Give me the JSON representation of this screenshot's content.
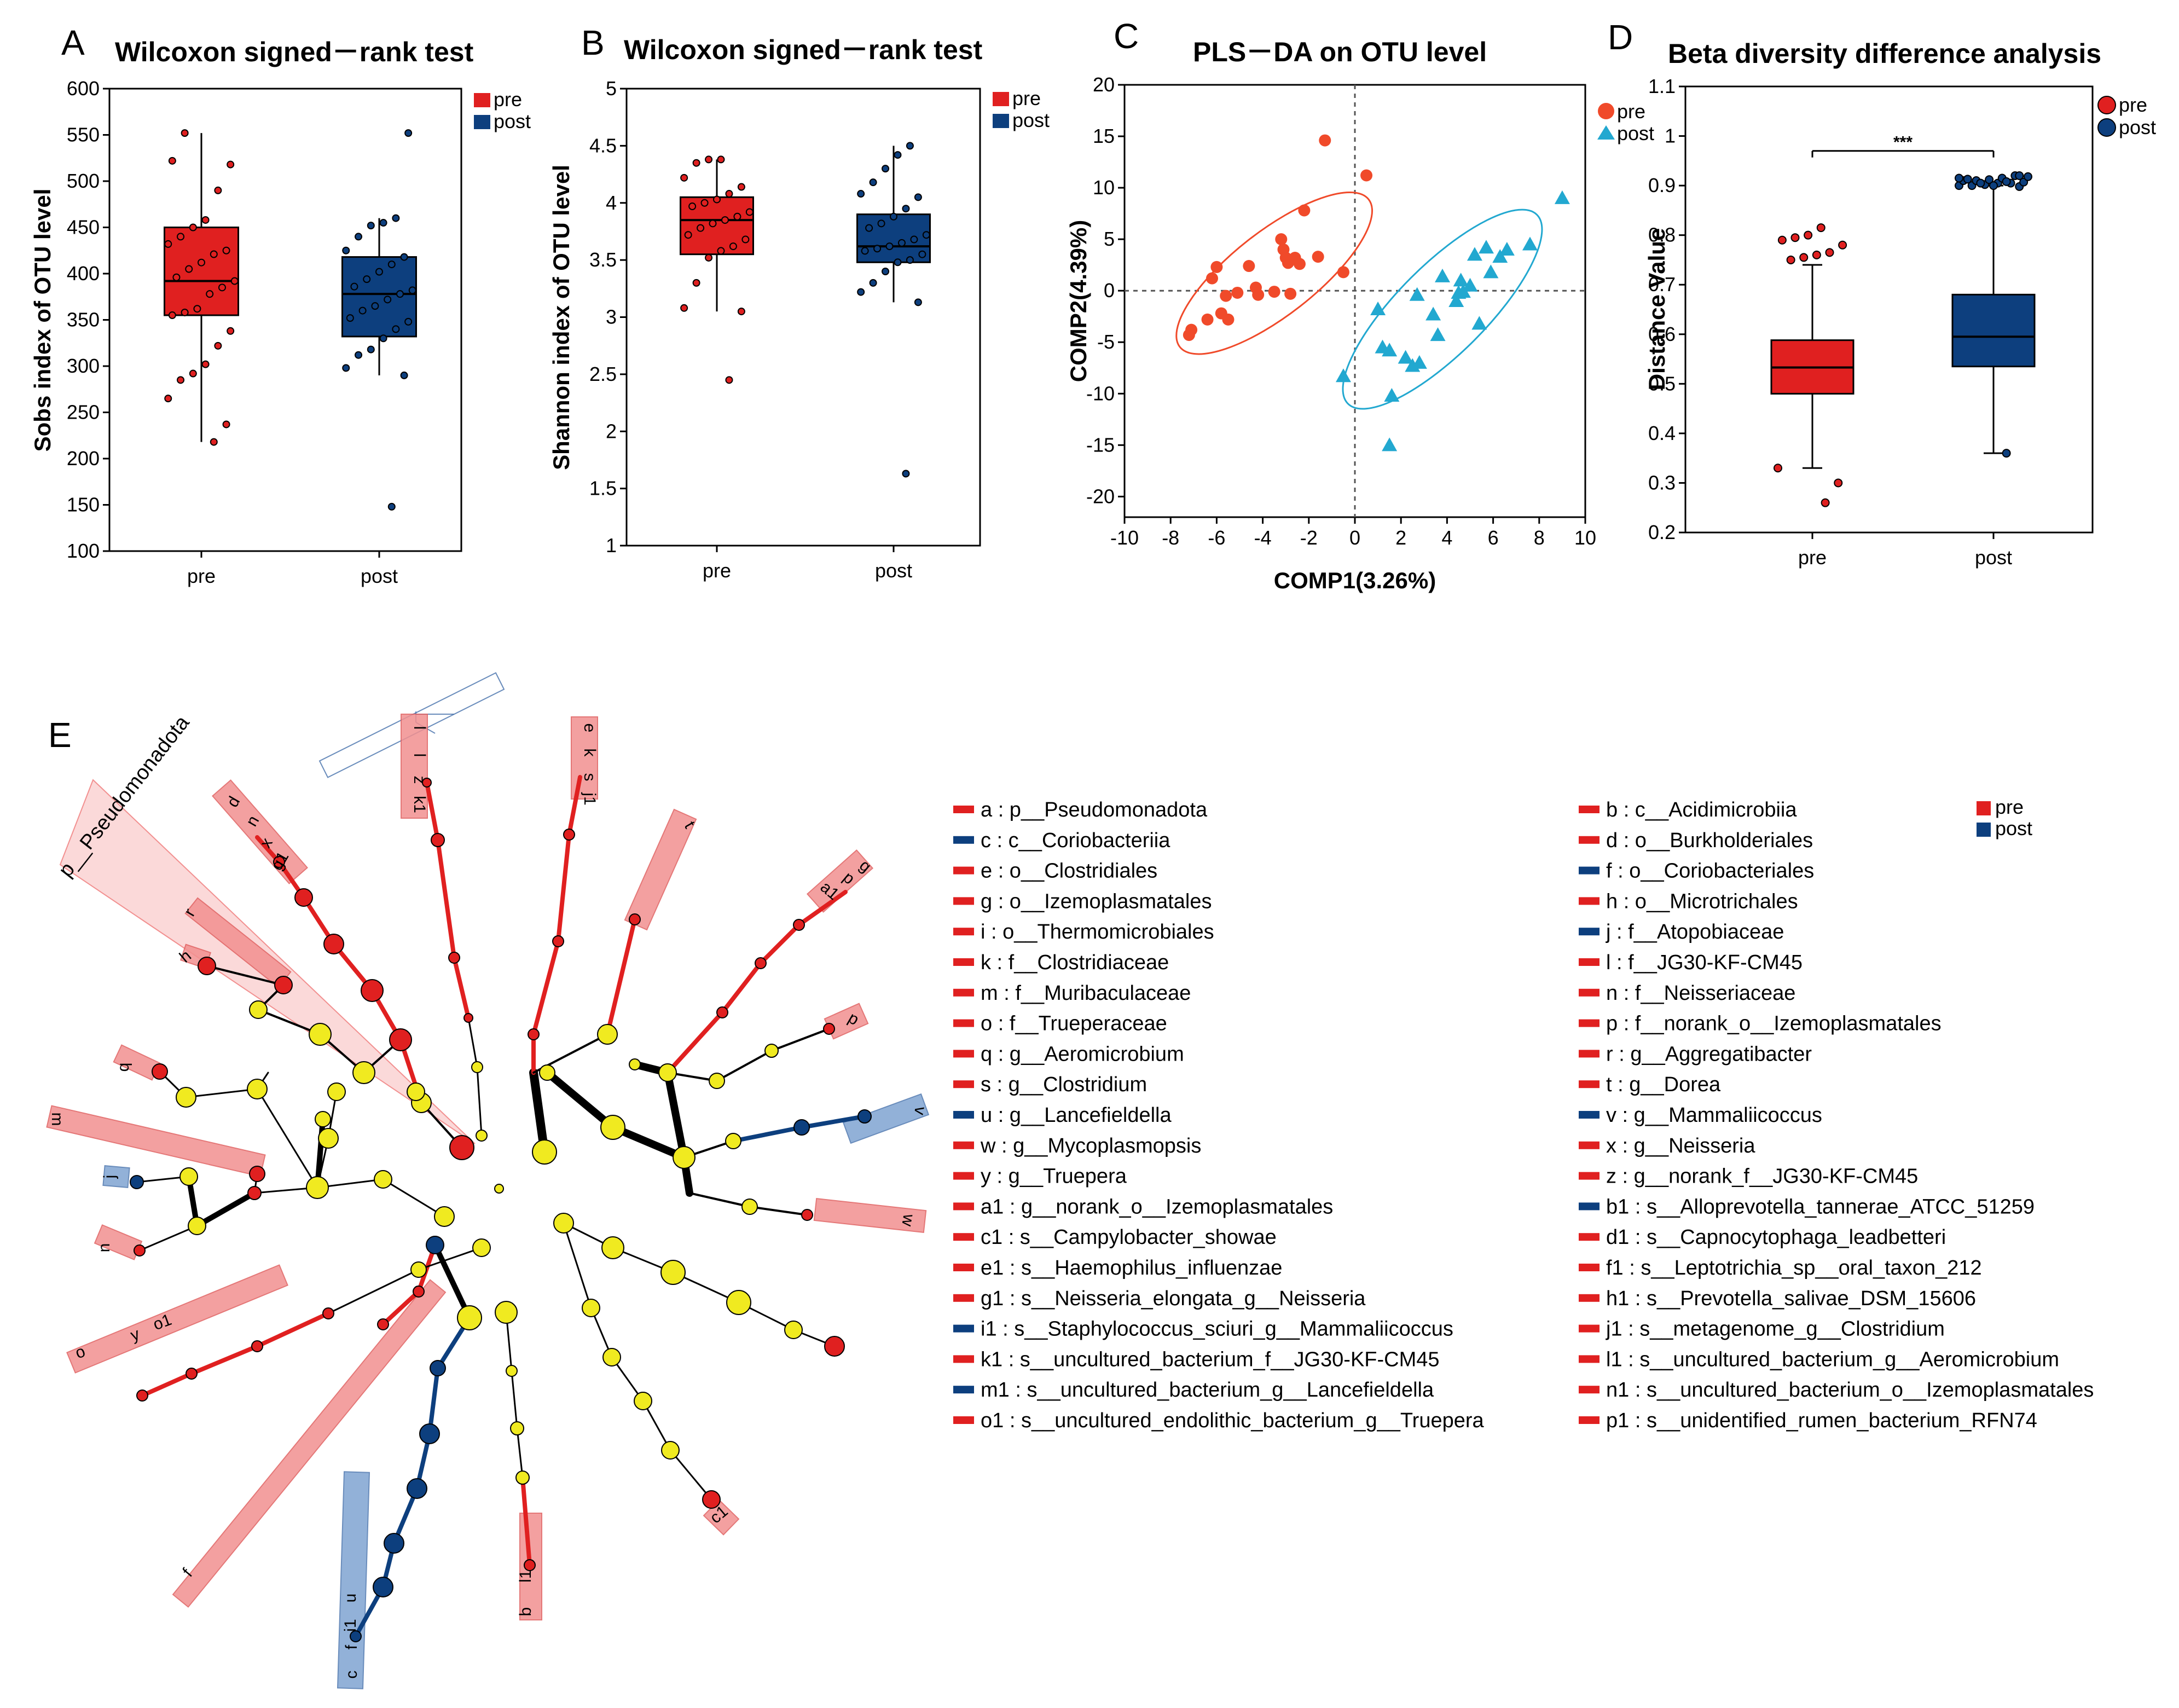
{
  "colors": {
    "pre": "#e02020",
    "post": "#0d3f7e",
    "pre_pls": "#f04a2a",
    "post_pls": "#22a8d0",
    "node": "#f0ea20",
    "pre_light": "#f29090",
    "post_light": "#7fa4d2",
    "pre_bg": "#fbd9d9"
  },
  "panels": {
    "A": {
      "label": "A",
      "title": "Wilcoxon signed－rank test"
    },
    "B": {
      "label": "B",
      "title": "Wilcoxon signed－rank test"
    },
    "C": {
      "label": "C",
      "title": "PLS－DA on OTU level"
    },
    "D": {
      "label": "D",
      "title": "Beta diversity difference analysis"
    },
    "E": {
      "label": "E",
      "clade_label": "p__Pseudomonadota"
    }
  },
  "chart_data": [
    {
      "id": "A",
      "type": "box",
      "title": "Wilcoxon signed－rank test",
      "ylabel": "Sobs index of OTU level",
      "xlabel": "",
      "ylim": [
        100,
        600
      ],
      "yticks": [
        100,
        150,
        200,
        250,
        300,
        350,
        400,
        450,
        500,
        550,
        600
      ],
      "categories": [
        "pre",
        "post"
      ],
      "legend": [
        "pre",
        "post"
      ],
      "boxes": [
        {
          "name": "pre",
          "q1": 355,
          "median": 392,
          "q3": 450,
          "whisker_low": 218,
          "whisker_high": 552,
          "points": [
            218,
            237,
            265,
            285,
            292,
            302,
            322,
            338,
            355,
            358,
            362,
            378,
            385,
            392,
            396,
            405,
            412,
            421,
            425,
            432,
            440,
            450,
            458,
            490,
            518,
            522,
            552
          ]
        },
        {
          "name": "post",
          "q1": 332,
          "median": 378,
          "q3": 418,
          "whisker_low": 290,
          "whisker_high": 460,
          "points": [
            148,
            290,
            298,
            312,
            318,
            330,
            340,
            348,
            352,
            360,
            365,
            372,
            378,
            382,
            386,
            394,
            402,
            410,
            418,
            425,
            440,
            452,
            455,
            460,
            552
          ]
        }
      ]
    },
    {
      "id": "B",
      "type": "box",
      "title": "Wilcoxon signed－rank test",
      "ylabel": "Shannon index of OTU level",
      "xlabel": "",
      "ylim": [
        1,
        5
      ],
      "yticks": [
        1,
        1.5,
        2,
        2.5,
        3,
        3.5,
        4,
        4.5,
        5
      ],
      "categories": [
        "pre",
        "post"
      ],
      "legend": [
        "pre",
        "post"
      ],
      "boxes": [
        {
          "name": "pre",
          "q1": 3.55,
          "median": 3.85,
          "q3": 4.05,
          "whisker_low": 3.05,
          "whisker_high": 4.38,
          "points": [
            2.45,
            3.05,
            3.08,
            3.3,
            3.52,
            3.58,
            3.62,
            3.68,
            3.72,
            3.78,
            3.82,
            3.85,
            3.88,
            3.92,
            3.97,
            4.0,
            4.03,
            4.08,
            4.14,
            4.22,
            4.35,
            4.38,
            4.38
          ]
        },
        {
          "name": "post",
          "q1": 3.48,
          "median": 3.62,
          "q3": 3.9,
          "whisker_low": 3.13,
          "whisker_high": 4.5,
          "points": [
            1.63,
            3.13,
            3.22,
            3.3,
            3.4,
            3.48,
            3.5,
            3.55,
            3.58,
            3.6,
            3.62,
            3.65,
            3.68,
            3.72,
            3.78,
            3.82,
            3.88,
            3.95,
            4.05,
            4.08,
            4.18,
            4.3,
            4.42,
            4.5
          ]
        }
      ]
    },
    {
      "id": "C",
      "type": "scatter",
      "title": "PLS－DA on OTU level",
      "xlabel": "COMP1(3.26%)",
      "ylabel": "COMP2(4.39%)",
      "xlim": [
        -10,
        10
      ],
      "ylim": [
        -22,
        20
      ],
      "xticks": [
        -10,
        -8,
        -6,
        -4,
        -2,
        0,
        2,
        4,
        6,
        8,
        10
      ],
      "yticks": [
        -20,
        -15,
        -10,
        -5,
        0,
        5,
        10,
        15,
        20
      ],
      "series": [
        {
          "name": "pre",
          "marker": "circle",
          "points": [
            [
              -7.2,
              -4.3
            ],
            [
              -7.1,
              -3.8
            ],
            [
              -6.4,
              -2.8
            ],
            [
              -6.2,
              1.2
            ],
            [
              -6.0,
              2.3
            ],
            [
              -5.8,
              -2.2
            ],
            [
              -5.6,
              -0.5
            ],
            [
              -5.5,
              -2.8
            ],
            [
              -5.1,
              -0.2
            ],
            [
              -4.6,
              2.4
            ],
            [
              -4.3,
              0.3
            ],
            [
              -4.2,
              -0.4
            ],
            [
              -3.5,
              -0.1
            ],
            [
              -3.2,
              5.0
            ],
            [
              -3.1,
              4.0
            ],
            [
              -3.0,
              3.2
            ],
            [
              -2.9,
              2.7
            ],
            [
              -2.8,
              -0.3
            ],
            [
              -2.8,
              3.0
            ],
            [
              -2.6,
              3.2
            ],
            [
              -2.4,
              2.6
            ],
            [
              -2.2,
              7.8
            ],
            [
              -1.6,
              3.3
            ],
            [
              -1.3,
              14.6
            ],
            [
              -0.5,
              1.8
            ],
            [
              0.5,
              11.2
            ]
          ]
        },
        {
          "name": "post",
          "marker": "triangle",
          "points": [
            [
              -0.5,
              -8.3
            ],
            [
              1.0,
              -1.8
            ],
            [
              1.2,
              -5.5
            ],
            [
              1.5,
              -5.8
            ],
            [
              1.5,
              -15.0
            ],
            [
              1.6,
              -10.2
            ],
            [
              2.2,
              -6.5
            ],
            [
              2.5,
              -7.3
            ],
            [
              2.7,
              -0.4
            ],
            [
              2.8,
              -7.0
            ],
            [
              3.4,
              -2.3
            ],
            [
              3.6,
              -4.3
            ],
            [
              3.8,
              1.4
            ],
            [
              4.4,
              -1.0
            ],
            [
              4.5,
              -0.2
            ],
            [
              4.6,
              1.0
            ],
            [
              4.7,
              -0.1
            ],
            [
              5.0,
              0.5
            ],
            [
              5.2,
              3.5
            ],
            [
              5.4,
              -3.2
            ],
            [
              5.7,
              4.2
            ],
            [
              5.9,
              1.8
            ],
            [
              6.3,
              3.3
            ],
            [
              6.6,
              4.0
            ],
            [
              7.6,
              4.5
            ],
            [
              9.0,
              9.0
            ]
          ]
        }
      ],
      "ellipses": [
        {
          "name": "pre",
          "cx": -3.5,
          "cy": 1.7,
          "rx": 5.2,
          "ry": 3.4,
          "angle_deg": 38
        },
        {
          "name": "post",
          "cx": 3.8,
          "cy": -1.8,
          "rx": 5.8,
          "ry": 3.6,
          "angle_deg": 45
        }
      ],
      "ref_lines": {
        "x": 0,
        "y": 0
      }
    },
    {
      "id": "D",
      "type": "box",
      "title": "Beta diversity difference analysis",
      "ylabel": "Distance Value",
      "xlabel": "",
      "ylim": [
        0.2,
        1.1
      ],
      "yticks": [
        0.2,
        0.3,
        0.4,
        0.5,
        0.6,
        0.7,
        0.8,
        0.9,
        1,
        1.1
      ],
      "categories": [
        "pre",
        "post"
      ],
      "legend": [
        "pre",
        "post"
      ],
      "significance": "***",
      "boxes": [
        {
          "name": "pre",
          "q1": 0.48,
          "median": 0.533,
          "q3": 0.588,
          "whisker_low": 0.33,
          "whisker_high": 0.74,
          "outliers": [
            0.26,
            0.3,
            0.33,
            0.75,
            0.755,
            0.76,
            0.765,
            0.78,
            0.79,
            0.795,
            0.8,
            0.815
          ]
        },
        {
          "name": "post",
          "q1": 0.535,
          "median": 0.595,
          "q3": 0.68,
          "whisker_low": 0.36,
          "whisker_high": 0.9,
          "outliers": [
            0.36,
            0.898,
            0.9,
            0.9,
            0.902,
            0.905,
            0.905,
            0.907,
            0.91,
            0.91,
            0.912,
            0.915,
            0.92,
            0.918,
            0.913,
            0.905,
            0.9,
            0.908,
            0.92,
            0.915
          ]
        }
      ]
    }
  ],
  "legend_E": {
    "groups": [
      "pre",
      "post"
    ],
    "left": [
      {
        "key": "a",
        "text": "a : p__Pseudomonadota",
        "group": "pre"
      },
      {
        "key": "c",
        "text": "c : c__Coriobacteriia",
        "group": "post"
      },
      {
        "key": "e",
        "text": "e : o__Clostridiales",
        "group": "pre"
      },
      {
        "key": "g",
        "text": "g : o__Izemoplasmatales",
        "group": "pre"
      },
      {
        "key": "i",
        "text": " i : o__Thermomicrobiales",
        "group": "pre"
      },
      {
        "key": "k",
        "text": "k : f__Clostridiaceae",
        "group": "pre"
      },
      {
        "key": "m",
        "text": "m : f__Muribaculaceae",
        "group": "pre"
      },
      {
        "key": "o",
        "text": "o : f__Trueperaceae",
        "group": "pre"
      },
      {
        "key": "q",
        "text": "q : g__Aeromicrobium",
        "group": "pre"
      },
      {
        "key": "s",
        "text": "s : g__Clostridium",
        "group": "pre"
      },
      {
        "key": "u",
        "text": "u : g__Lancefieldella",
        "group": "post"
      },
      {
        "key": "w",
        "text": "w : g__Mycoplasmopsis",
        "group": "pre"
      },
      {
        "key": "y",
        "text": "y : g__Truepera",
        "group": "pre"
      },
      {
        "key": "a1",
        "text": "a1 : g__norank_o__Izemoplasmatales",
        "group": "pre"
      },
      {
        "key": "c1",
        "text": "c1 : s__Campylobacter_showae",
        "group": "pre"
      },
      {
        "key": "e1",
        "text": "e1 : s__Haemophilus_influenzae",
        "group": "pre"
      },
      {
        "key": "g1",
        "text": "g1 : s__Neisseria_elongata_g__Neisseria",
        "group": "pre"
      },
      {
        "key": "i1",
        "text": "i1 : s__Staphylococcus_sciuri_g__Mammaliicoccus",
        "group": "post"
      },
      {
        "key": "k1",
        "text": "k1 : s__uncultured_bacterium_f__JG30-KF-CM45",
        "group": "pre"
      },
      {
        "key": "m1",
        "text": "m1 : s__uncultured_bacterium_g__Lancefieldella",
        "group": "post"
      },
      {
        "key": "o1",
        "text": "o1 : s__uncultured_endolithic_bacterium_g__Truepera",
        "group": "pre"
      }
    ],
    "right": [
      {
        "key": "b",
        "text": "b : c__Acidimicrobiia",
        "group": "pre"
      },
      {
        "key": "d",
        "text": "d : o__Burkholderiales",
        "group": "pre"
      },
      {
        "key": "f",
        "text": "f : o__Coriobacteriales",
        "group": "post"
      },
      {
        "key": "h",
        "text": "h : o__Microtrichales",
        "group": "pre"
      },
      {
        "key": "j",
        "text": "j : f__Atopobiaceae",
        "group": "post"
      },
      {
        "key": "l",
        "text": "l : f__JG30-KF-CM45",
        "group": "pre"
      },
      {
        "key": "n",
        "text": "n : f__Neisseriaceae",
        "group": "pre"
      },
      {
        "key": "p",
        "text": "p : f__norank_o__Izemoplasmatales",
        "group": "pre"
      },
      {
        "key": "r",
        "text": "r : g__Aggregatibacter",
        "group": "pre"
      },
      {
        "key": "t",
        "text": "t : g__Dorea",
        "group": "pre"
      },
      {
        "key": "v",
        "text": "v : g__Mammaliicoccus",
        "group": "post"
      },
      {
        "key": "x",
        "text": "x : g__Neisseria",
        "group": "pre"
      },
      {
        "key": "z",
        "text": "z : g__norank_f__JG30-KF-CM45",
        "group": "pre"
      },
      {
        "key": "b1",
        "text": "b1 : s__Alloprevotella_tannerae_ATCC_51259",
        "group": "post"
      },
      {
        "key": "d1",
        "text": "d1 : s__Capnocytophaga_leadbetteri",
        "group": "pre"
      },
      {
        "key": "f1",
        "text": "f1 : s__Leptotrichia_sp__oral_taxon_212",
        "group": "pre"
      },
      {
        "key": "h1",
        "text": "h1 : s__Prevotella_salivae_DSM_15606",
        "group": "pre"
      },
      {
        "key": "j1",
        "text": "j1 : s__metagenome_g__Clostridium",
        "group": "pre"
      },
      {
        "key": "l1",
        "text": "l1 : s__uncultured_bacterium_g__Aeromicrobium",
        "group": "pre"
      },
      {
        "key": "n1",
        "text": "n1 : s__uncultured_bacterium_o__Izemoplasmatales",
        "group": "pre"
      },
      {
        "key": "p1",
        "text": "p1 : s__unidentified_rumen_bacterium_RFN74",
        "group": "pre"
      }
    ]
  }
}
